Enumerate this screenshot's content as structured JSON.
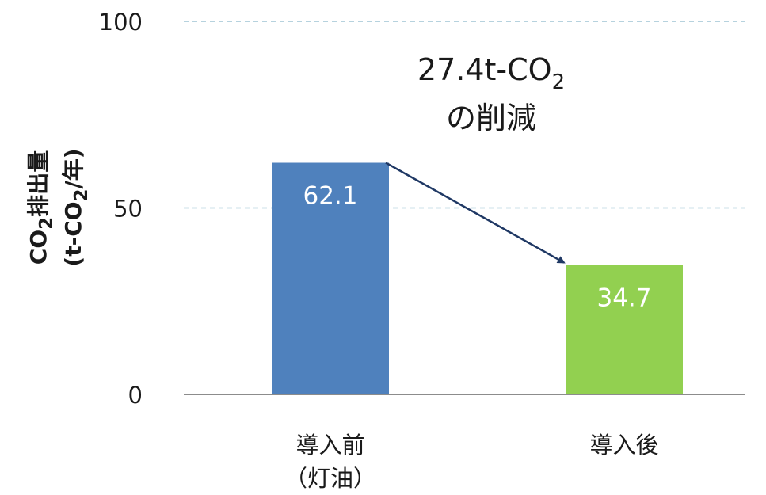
{
  "chart_data": {
    "type": "bar",
    "categories": [
      "導入前（灯油）",
      "導入後"
    ],
    "category_lines": [
      [
        "導入前",
        "（灯油）"
      ],
      [
        "導入後"
      ]
    ],
    "values": [
      62.1,
      34.7
    ],
    "data_labels": [
      "62.1",
      "34.7"
    ],
    "bar_colors": [
      "#4f81bd",
      "#92d050"
    ],
    "ylim": [
      0,
      100
    ],
    "yticks": [
      0,
      50,
      100
    ],
    "ytick_labels": [
      "0",
      "50",
      "100"
    ],
    "grid": "dashed horizontal at 50 and 100",
    "ylabel": {
      "line1": {
        "a": "CO",
        "sub": "2",
        "b": "排出量"
      },
      "line2": {
        "a": "(t-CO",
        "sub": "2",
        "b": "/年)"
      }
    },
    "annotation": {
      "line1": {
        "a": "27.4t-CO",
        "sub": "2"
      },
      "line2": "の削減"
    },
    "arrow": {
      "from": "導入前",
      "to": "導入後",
      "color": "#1f3864"
    },
    "colors": {
      "gridline": "#9dc3d4",
      "axis": "#8c8c8c"
    }
  }
}
